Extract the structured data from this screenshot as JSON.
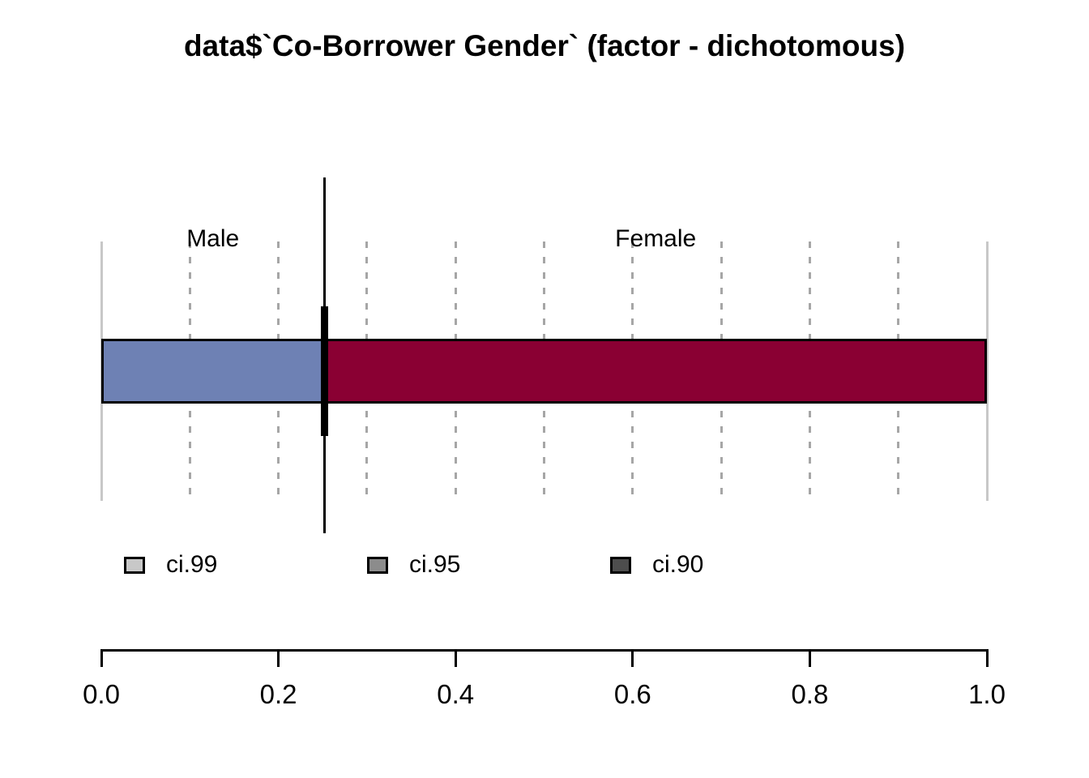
{
  "chart_data": {
    "type": "bar",
    "orientation": "horizontal-stacked-proportion",
    "title": "data$`Co-Borrower Gender` (factor - dichotomous)",
    "categories": [
      "Male",
      "Female"
    ],
    "values": [
      0.252,
      0.748
    ],
    "series_colors": [
      "#6E81B4",
      "#8A0033"
    ],
    "point_estimate": 0.252,
    "xlim": [
      0,
      1
    ],
    "x_tick_values": [
      0,
      0.2,
      0.4,
      0.6,
      0.8,
      1
    ],
    "x_tick_labels": [
      "0.0",
      "0.2",
      "0.4",
      "0.6",
      "0.8",
      "1.0"
    ],
    "gridline_values": [
      0,
      0.1,
      0.2,
      0.3,
      0.4,
      0.5,
      0.6,
      0.7,
      0.8,
      0.9,
      1
    ],
    "grid_style": "vertical-dashed-gray",
    "legend_position": "below-plot-left",
    "legend": [
      {
        "label": "ci.99",
        "color": "#C8C8C8"
      },
      {
        "label": "ci.95",
        "color": "#8C8C8C"
      },
      {
        "label": "ci.90",
        "color": "#4D4D4D"
      }
    ],
    "colors": {
      "background": "#FFFFFF",
      "grid_dashed": "#A6A6A6",
      "grid_edge_solid": "#C8C8C8",
      "bar_border": "#000000",
      "estimate_line": "#000000",
      "axis": "#000000",
      "text": "#000000"
    }
  }
}
